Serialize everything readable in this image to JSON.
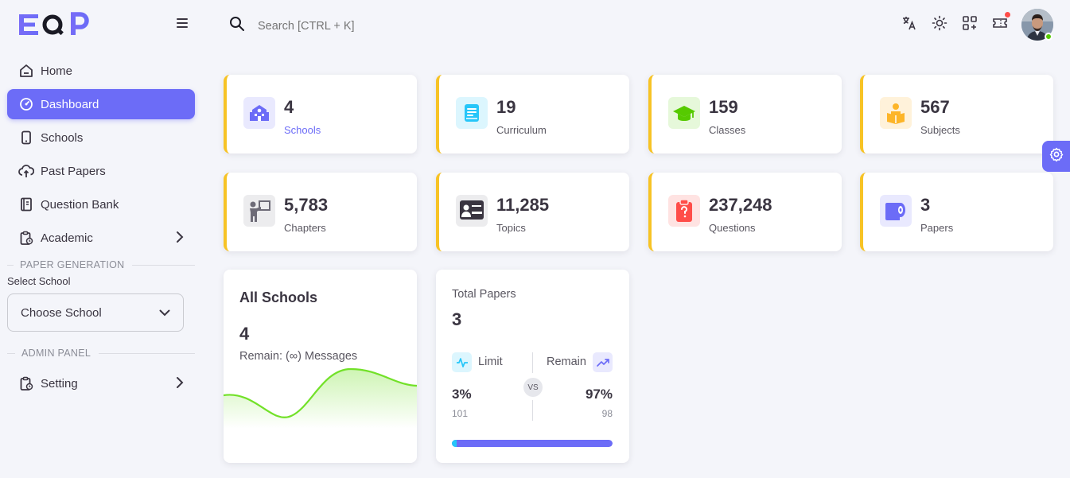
{
  "brand": {
    "logo_text": "EQP"
  },
  "search": {
    "placeholder": "Search [CTRL + K]"
  },
  "sidebar": {
    "items": [
      {
        "label": "Home",
        "icon": "home-icon"
      },
      {
        "label": "Dashboard",
        "icon": "gauge-icon",
        "active": true
      },
      {
        "label": "Schools",
        "icon": "phone-icon"
      },
      {
        "label": "Past Papers",
        "icon": "cloud-upload-icon"
      },
      {
        "label": "Question Bank",
        "icon": "book-icon"
      },
      {
        "label": "Academic",
        "icon": "clipboard-clock-icon",
        "has_children": true
      }
    ],
    "paper_generation": {
      "title": "PAPER GENERATION",
      "select_label": "Select School",
      "select_value": "Choose School"
    },
    "admin_panel": {
      "title": "ADMIN PANEL",
      "items": [
        {
          "label": "Setting",
          "icon": "clipboard-clock-icon",
          "has_children": true
        }
      ]
    }
  },
  "stats": [
    {
      "value": "4",
      "label": "Schools",
      "icon": "school-icon",
      "color": "#6c6cf7",
      "bg": "#e9e9fe",
      "label_color": "#6c6cf7"
    },
    {
      "value": "19",
      "label": "Curriculum",
      "icon": "book-icon",
      "color": "#26c6f9",
      "bg": "#dcf6fe"
    },
    {
      "value": "159",
      "label": "Classes",
      "icon": "graduation-cap-icon",
      "color": "#56ca00",
      "bg": "#e6f8da"
    },
    {
      "value": "567",
      "label": "Subjects",
      "icon": "reader-icon",
      "color": "#fdb528",
      "bg": "#fff2da"
    },
    {
      "value": "5,783",
      "label": "Chapters",
      "icon": "teacher-icon",
      "color": "#6d6b77",
      "bg": "#ececee"
    },
    {
      "value": "11,285",
      "label": "Topics",
      "icon": "presentation-icon",
      "color": "#3a3541",
      "bg": "#ececee"
    },
    {
      "value": "237,248",
      "label": "Questions",
      "icon": "clipboard-question-icon",
      "color": "#ff4d49",
      "bg": "#ffe3e2"
    },
    {
      "value": "3",
      "label": "Papers",
      "icon": "paper-roll-icon",
      "color": "#6c6cf7",
      "bg": "#e9e9fe"
    }
  ],
  "all_schools": {
    "title": "All Schools",
    "value": "4",
    "subtitle": "Remain: (∞) Messages",
    "line_color": "#72e128"
  },
  "total_papers": {
    "title": "Total Papers",
    "value": "3",
    "limit_label": "Limit",
    "remain_label": "Remain",
    "limit_pct": "3%",
    "limit_count": "101",
    "remain_pct": "97%",
    "remain_count": "98",
    "vs": "VS",
    "progress": 0.03
  },
  "colors": {
    "primary": "#6c6cf7",
    "accent": "#f7c325",
    "online": "#56ca00"
  }
}
